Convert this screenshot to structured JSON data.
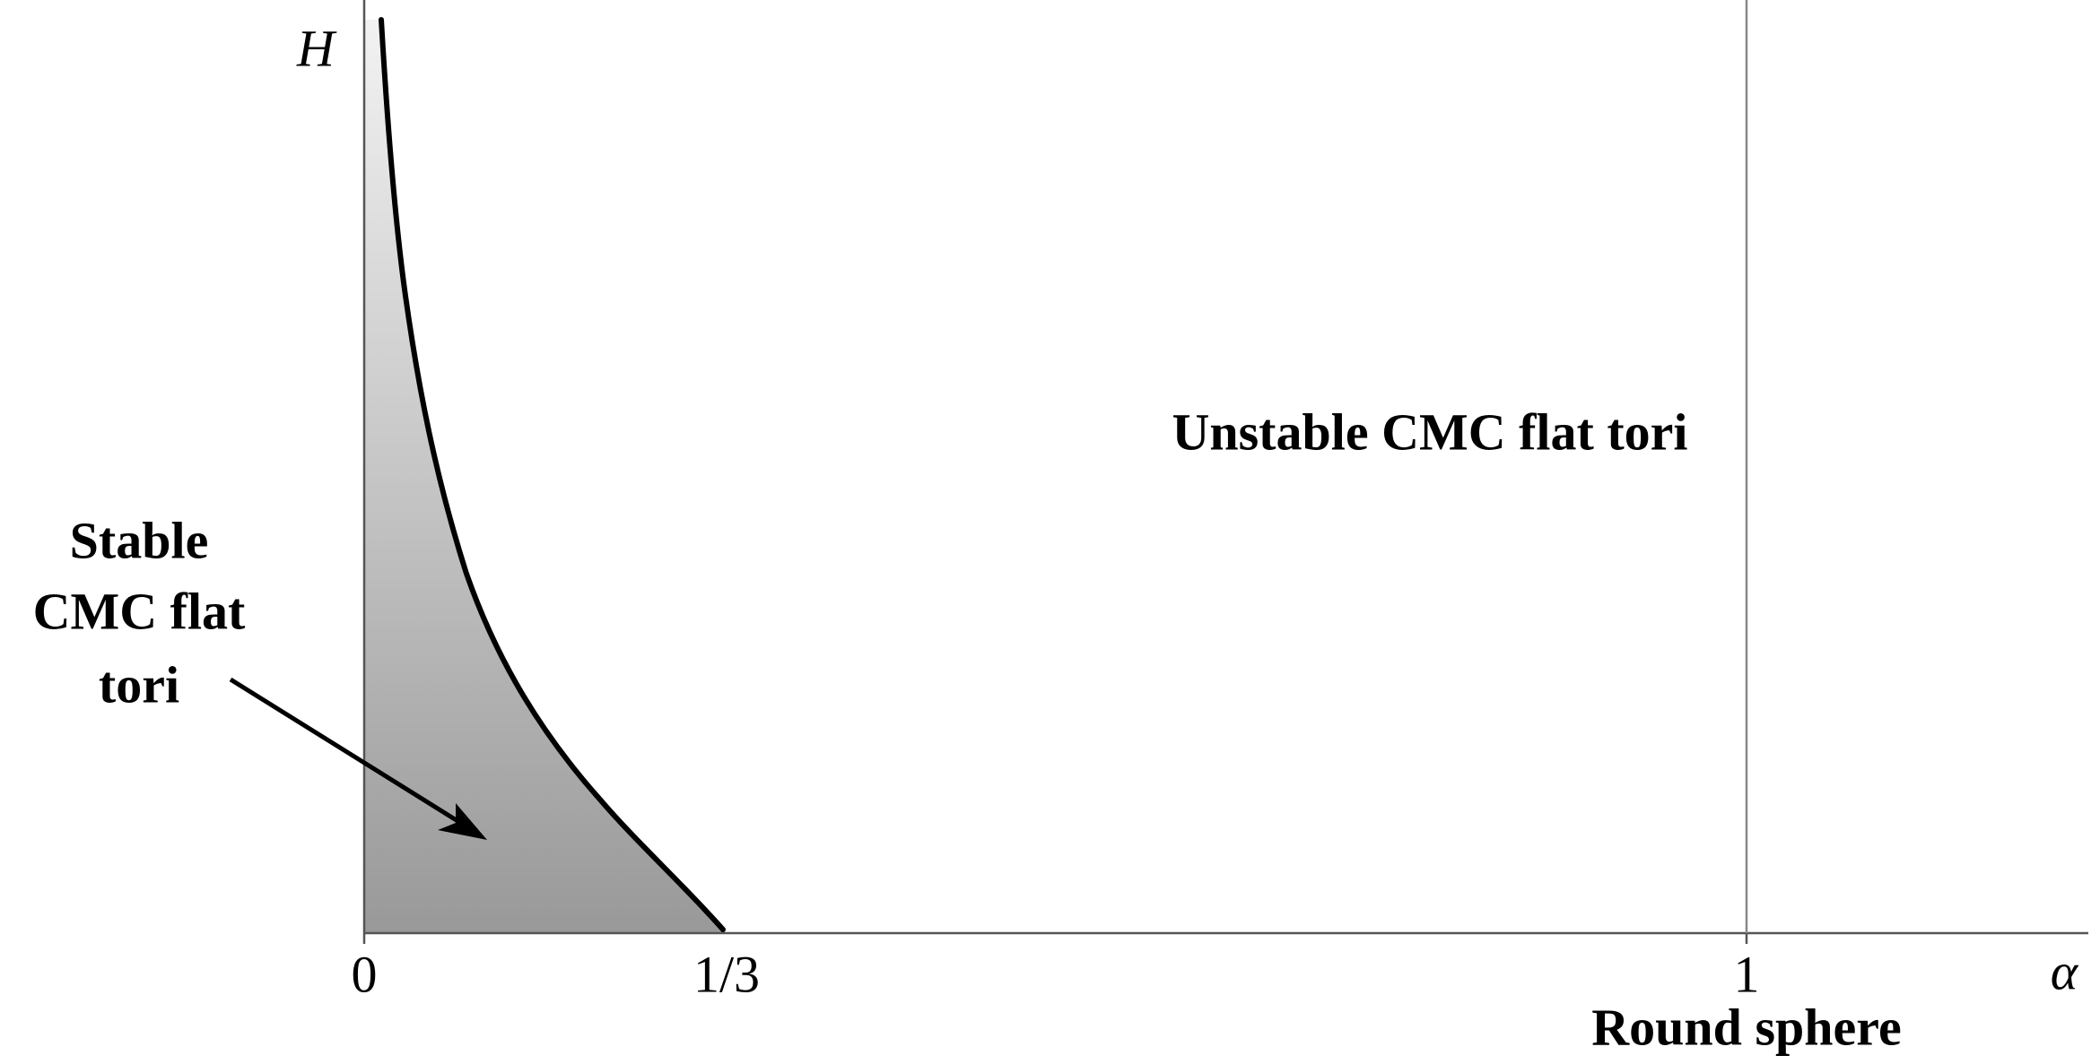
{
  "axis_labels": {
    "y": "H",
    "x": "α"
  },
  "ticks": [
    "0",
    "1/3",
    "1"
  ],
  "annotations": {
    "vertical_line": "Round sphere",
    "unstable_region": "Unstable CMC flat tori",
    "stable_region": [
      "Stable",
      "CMC flat",
      "tori"
    ]
  }
}
